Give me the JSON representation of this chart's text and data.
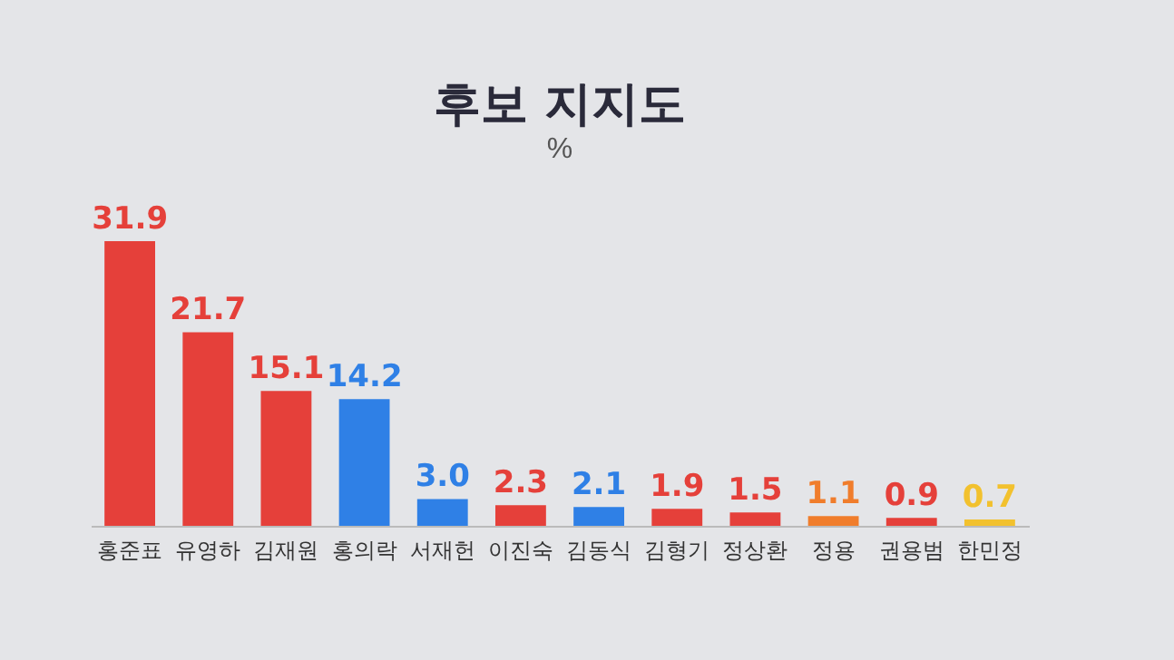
{
  "chart_data": {
    "type": "bar",
    "title": "후보 지지도",
    "subtitle": "%",
    "categories": [
      "홍준표",
      "유영하",
      "김재원",
      "홍의락",
      "서재헌",
      "이진숙",
      "김동식",
      "김형기",
      "정상환",
      "정용",
      "권용범",
      "한민정"
    ],
    "values": [
      31.9,
      21.7,
      15.1,
      14.2,
      3.0,
      2.3,
      2.1,
      1.9,
      1.5,
      1.1,
      0.9,
      0.7
    ],
    "colors": [
      "#e5403a",
      "#e5403a",
      "#e5403a",
      "#2f80e6",
      "#2f80e6",
      "#e5403a",
      "#2f80e6",
      "#e5403a",
      "#e5403a",
      "#f07d2c",
      "#e5403a",
      "#f2c12e"
    ],
    "value_labels": [
      "31.9",
      "21.7",
      "15.1",
      "14.2",
      "3.0",
      "2.3",
      "2.1",
      "1.9",
      "1.5",
      "1.1",
      "0.9",
      "0.7"
    ]
  }
}
